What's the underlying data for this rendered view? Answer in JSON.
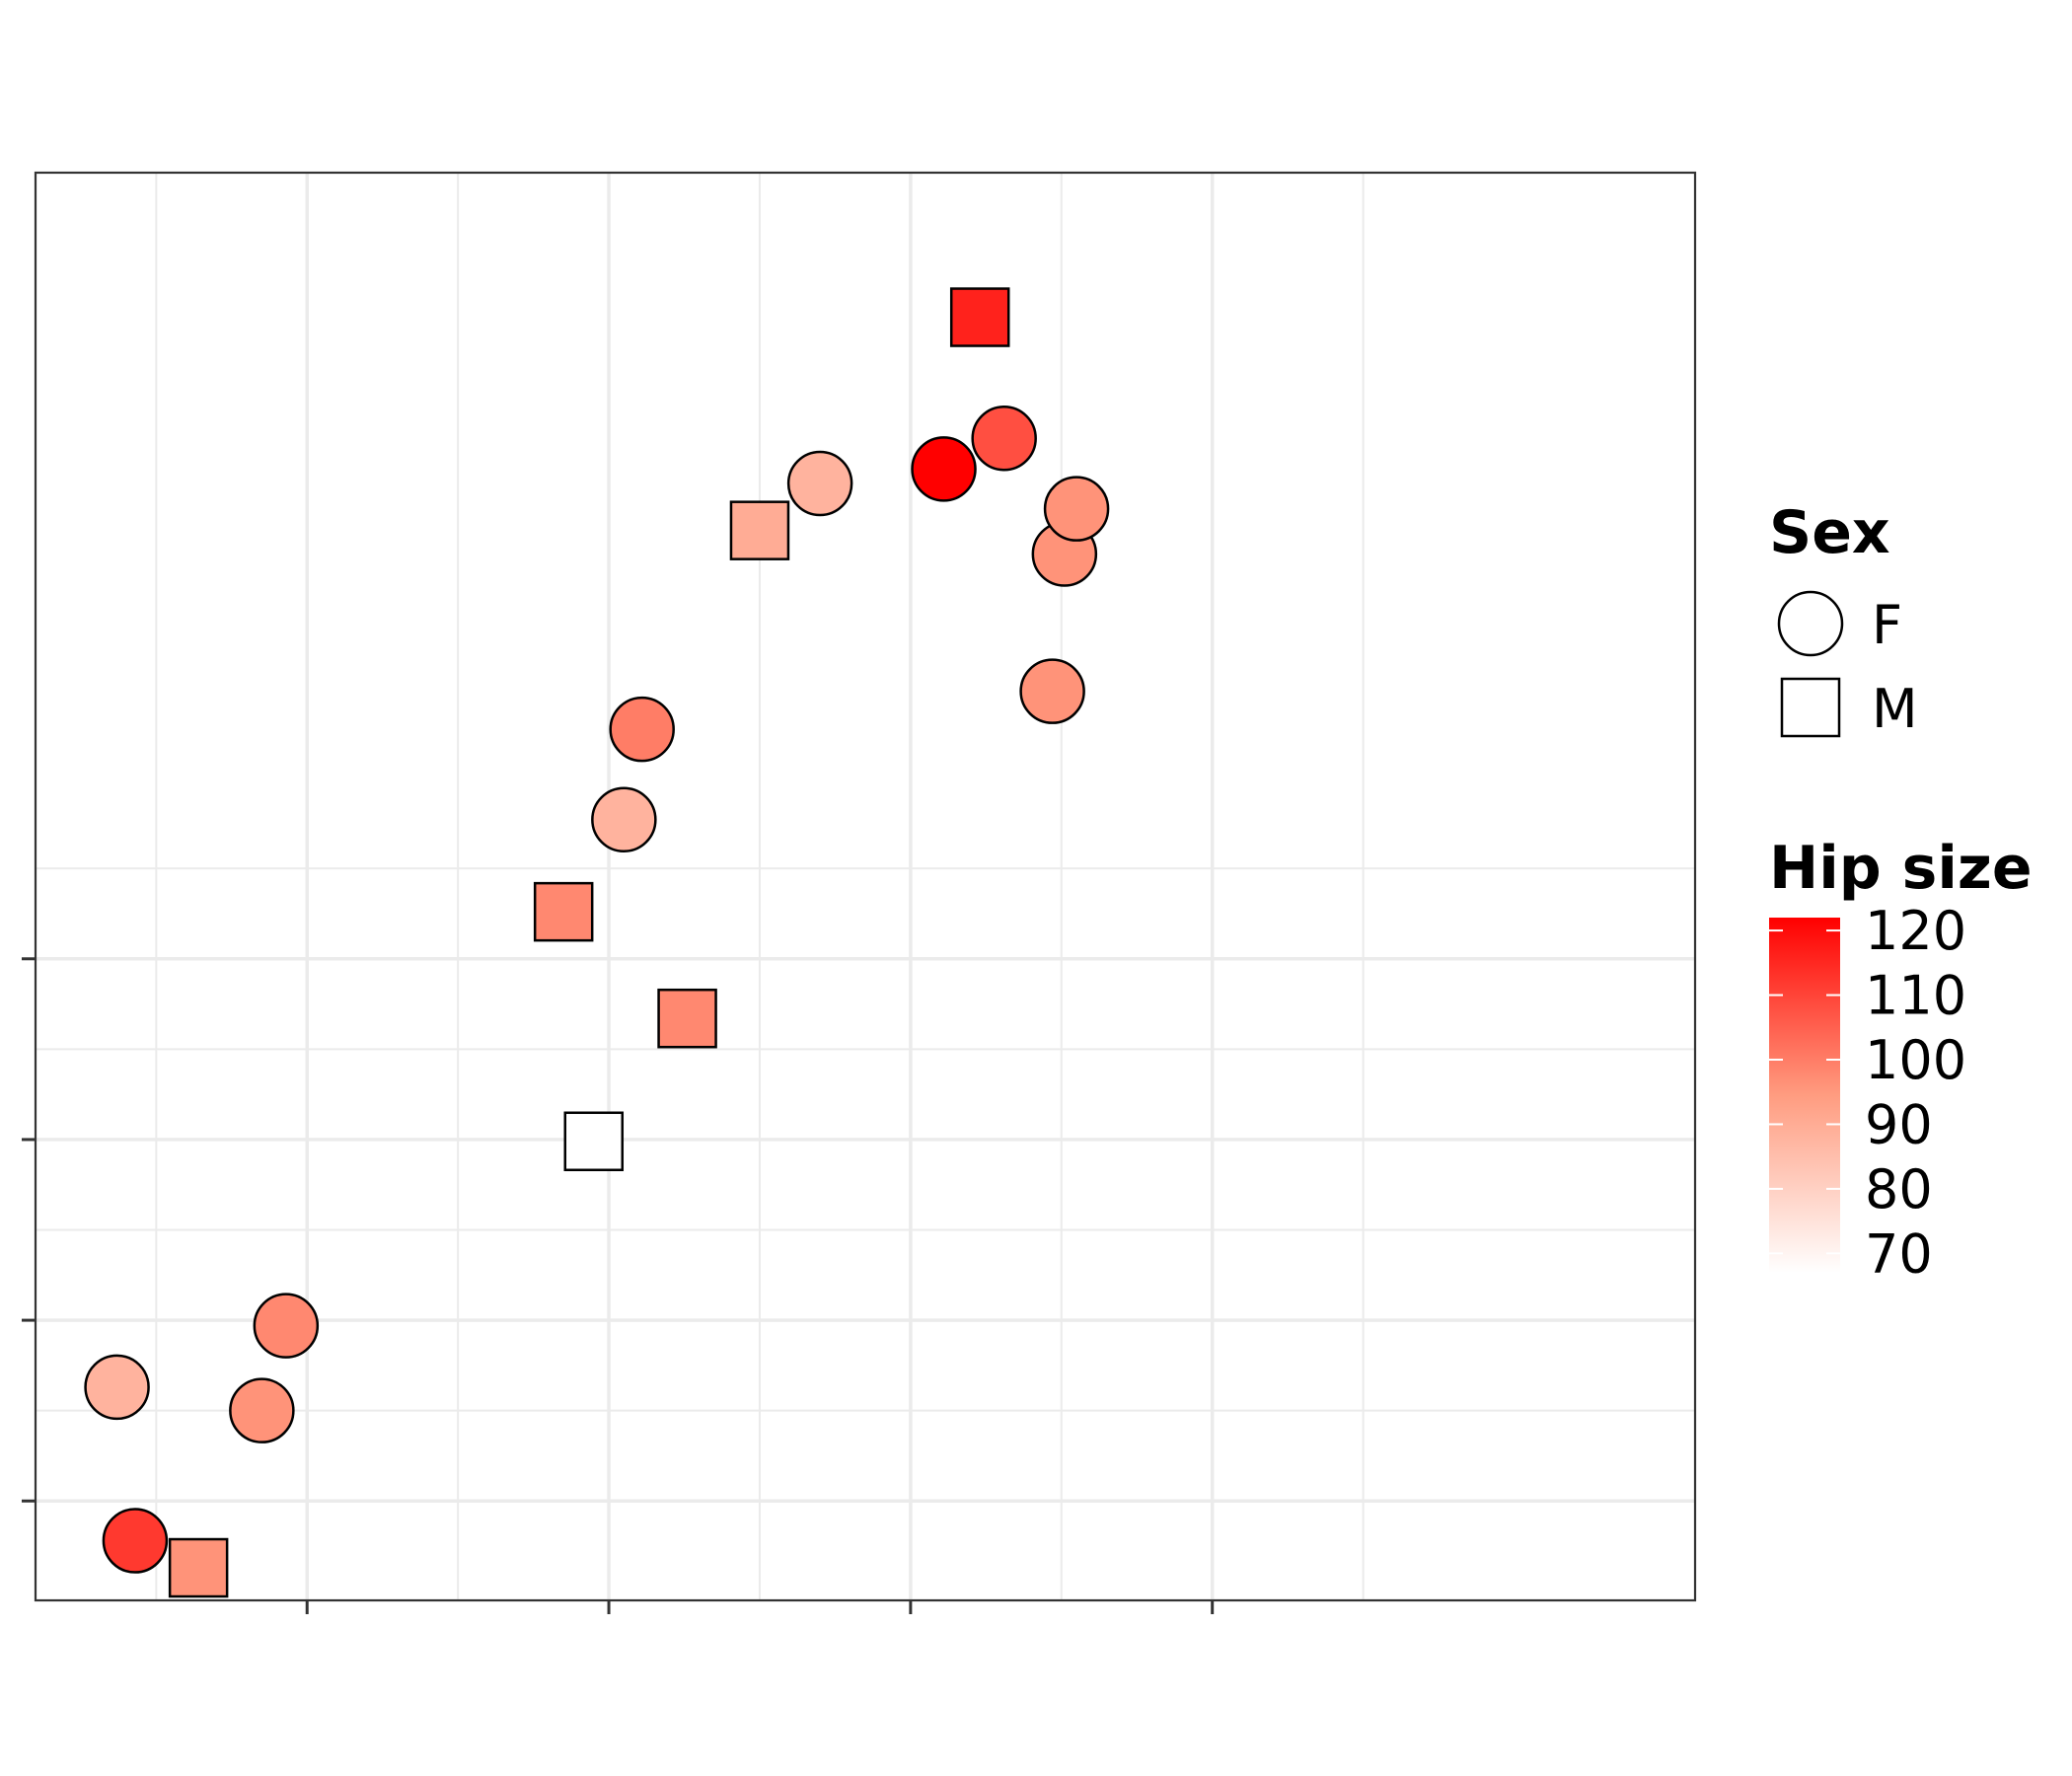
{
  "chart_data": {
    "type": "scatter",
    "title": "",
    "xlabel": "",
    "ylabel": "",
    "xlim": [
      -1.9,
      3.6
    ],
    "ylim": [
      -3.55,
      4.35
    ],
    "x_ticks": [
      -1,
      0,
      1,
      2
    ],
    "y_ticks": [
      -3,
      -2,
      -1,
      0
    ],
    "x_tick_labels": [],
    "y_tick_labels": [],
    "grid": true,
    "legend_position": "right",
    "shape_legend": {
      "title": "Sex",
      "entries": [
        {
          "label": "F",
          "shape": "circle"
        },
        {
          "label": "M",
          "shape": "square"
        }
      ]
    },
    "color_legend": {
      "title": "Hip size",
      "min": 67,
      "max": 122,
      "low_color": "#ffffff",
      "high_color": "#ff0000",
      "ticks": [
        "120",
        "110",
        "100",
        "90",
        "80",
        "70"
      ],
      "tick_values": [
        120,
        110,
        100,
        90,
        80,
        70
      ]
    },
    "points": [
      {
        "x": -1.63,
        "y": -2.37,
        "sex": "F",
        "hip": 88
      },
      {
        "x": -1.57,
        "y": -3.22,
        "sex": "F",
        "hip": 112
      },
      {
        "x": -1.36,
        "y": -3.37,
        "sex": "M",
        "hip": 96
      },
      {
        "x": -1.07,
        "y": -2.03,
        "sex": "F",
        "hip": 98
      },
      {
        "x": -1.15,
        "y": -2.5,
        "sex": "F",
        "hip": 96
      },
      {
        "x": -0.15,
        "y": 0.26,
        "sex": "M",
        "hip": 98
      },
      {
        "x": -0.05,
        "y": -1.01,
        "sex": "M",
        "hip": 67
      },
      {
        "x": 0.05,
        "y": 0.77,
        "sex": "F",
        "hip": 88
      },
      {
        "x": 0.11,
        "y": 1.27,
        "sex": "F",
        "hip": 100
      },
      {
        "x": 0.26,
        "y": -0.33,
        "sex": "M",
        "hip": 98
      },
      {
        "x": 0.5,
        "y": 2.37,
        "sex": "M",
        "hip": 90
      },
      {
        "x": 0.7,
        "y": 2.63,
        "sex": "F",
        "hip": 88
      },
      {
        "x": 1.11,
        "y": 2.71,
        "sex": "F",
        "hip": 122
      },
      {
        "x": 1.23,
        "y": 3.55,
        "sex": "M",
        "hip": 116
      },
      {
        "x": 1.31,
        "y": 2.88,
        "sex": "F",
        "hip": 108
      },
      {
        "x": 1.47,
        "y": 1.48,
        "sex": "F",
        "hip": 96
      },
      {
        "x": 1.51,
        "y": 2.24,
        "sex": "F",
        "hip": 96
      },
      {
        "x": 1.55,
        "y": 2.49,
        "sex": "F",
        "hip": 96
      }
    ]
  }
}
